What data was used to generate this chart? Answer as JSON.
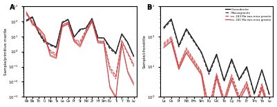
{
  "panel_A_label": "A",
  "panel_B_label": "B",
  "spider_elements": [
    "Rb",
    "Ba",
    "Th",
    "U",
    "Nb",
    "Ta",
    "La",
    "Ce",
    "Pr",
    "Sr",
    "Nd",
    "Zr",
    "Hf",
    "Sm",
    "Eu",
    "Ti",
    "Y",
    "Yb",
    "Lu"
  ],
  "ree_elements": [
    "La",
    "Ce",
    "Pr",
    "Nd",
    "Pm",
    "Sm",
    "Eu",
    "Gd",
    "Tb",
    "Dy",
    "Ho",
    "Er",
    "Tm",
    "Yb",
    "Lu"
  ],
  "ylabel_A": "Sample/primitive mantle",
  "ylabel_B": "Sample/chondrite",
  "legend_entries": [
    "Granodiorite",
    "Monzogranite",
    "ca. 243 Ma two-mica granite",
    "ca. 241 Ma two-mica granite"
  ],
  "spider_granodiorite_lines": [
    [
      120,
      200,
      20,
      5,
      3,
      2,
      80,
      130,
      9,
      30,
      35,
      150,
      8,
      8,
      2.0,
      0.8,
      15,
      4,
      0.5
    ]
  ],
  "spider_monzogranite_lines": [
    [
      100,
      180,
      18,
      4,
      2.5,
      1.8,
      90,
      140,
      10,
      25,
      38,
      160,
      9,
      7.5,
      1.5,
      0.7,
      14,
      3.5,
      0.45
    ]
  ],
  "spider_243_lines": [
    [
      300,
      80,
      25,
      7,
      1.0,
      0.6,
      55,
      85,
      6,
      4,
      25,
      120,
      5,
      4.5,
      0.08,
      0.02,
      5,
      0.8,
      0.12
    ],
    [
      350,
      100,
      28,
      8,
      0.9,
      0.5,
      50,
      80,
      5.5,
      3,
      22,
      130,
      5.2,
      4.2,
      0.06,
      0.015,
      4.5,
      0.7,
      0.1
    ],
    [
      280,
      90,
      22,
      6,
      1.2,
      0.7,
      60,
      90,
      6.5,
      5,
      28,
      110,
      4.8,
      5.0,
      0.1,
      0.025,
      5.5,
      0.9,
      0.14
    ]
  ],
  "spider_241_lines": [
    [
      400,
      60,
      35,
      12,
      0.6,
      0.4,
      45,
      70,
      5,
      2.5,
      18,
      100,
      4,
      3.8,
      0.005,
      0.001,
      3.5,
      0.05,
      0.008
    ],
    [
      420,
      70,
      38,
      13,
      0.5,
      0.35,
      42,
      65,
      4.5,
      2,
      16,
      95,
      3.8,
      3.5,
      0.004,
      0.0008,
      3,
      0.04,
      0.006
    ]
  ],
  "ree_granodiorite_lines": [
    [
      200,
      380,
      50,
      180,
      null,
      30,
      6.5,
      26,
      3.5,
      18,
      3.8,
      10,
      1.3,
      8,
      1.2
    ]
  ],
  "ree_monzogranite_lines": [
    [
      180,
      340,
      45,
      160,
      null,
      28,
      5.5,
      24,
      3.2,
      16,
      3.5,
      9,
      1.2,
      7.5,
      1.1
    ]
  ],
  "ree_243_lines": [
    [
      55,
      90,
      10,
      38,
      null,
      6.5,
      0.4,
      5.5,
      0.8,
      5.0,
      1.0,
      3.0,
      0.38,
      2.5,
      0.38
    ],
    [
      50,
      82,
      9,
      35,
      null,
      6.0,
      0.35,
      5.0,
      0.75,
      4.5,
      0.95,
      2.8,
      0.35,
      2.3,
      0.35
    ],
    [
      60,
      98,
      11,
      42,
      null,
      7.0,
      0.45,
      6.0,
      0.85,
      5.5,
      1.05,
      3.2,
      0.41,
      2.7,
      0.41
    ]
  ],
  "ree_241_lines": [
    [
      45,
      72,
      8.5,
      30,
      null,
      5.5,
      0.18,
      4.5,
      0.6,
      3.8,
      0.78,
      2.3,
      0.3,
      2.0,
      0.3
    ],
    [
      42,
      68,
      8.0,
      28,
      null,
      5.2,
      0.15,
      4.2,
      0.55,
      3.5,
      0.73,
      2.1,
      0.28,
      1.8,
      0.28
    ]
  ],
  "ylim_A": [
    0.001,
    1000
  ],
  "ylim_B": [
    1,
    1000
  ],
  "color_granodiorite": "#000000",
  "color_monzogranite": "#333333",
  "color_243": "#d04040",
  "color_241": "#d04040",
  "bg_color": "#ffffff"
}
